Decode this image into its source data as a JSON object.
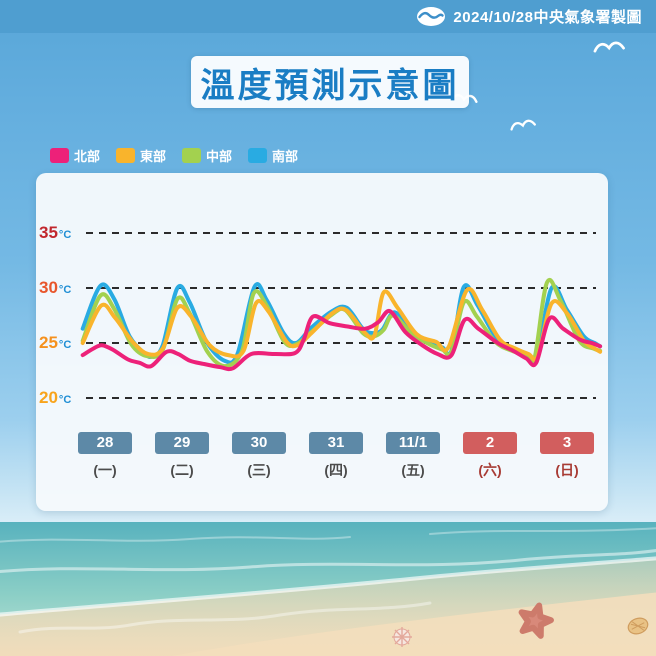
{
  "header": {
    "attribution": "2024/10/28中央氣象署製圖",
    "logo_icon": "cwa-wave-logo"
  },
  "title": "溫度預測示意圖",
  "legend": [
    {
      "label": "北部",
      "color": "#ed2179"
    },
    {
      "label": "東部",
      "color": "#f9b42c"
    },
    {
      "label": "中部",
      "color": "#a3d14f"
    },
    {
      "label": "南部",
      "color": "#29abe2"
    }
  ],
  "chart_data": {
    "type": "line",
    "title": "溫度預測示意圖",
    "grid": "horizontal-dashed",
    "legend_position": "top-left-outside",
    "x_axis": {
      "note": "x in day units 0-7, one unit per date, tick centers at k+0.5",
      "days": [
        {
          "date": "28",
          "weekday": "(一)",
          "weekend": false
        },
        {
          "date": "29",
          "weekday": "(二)",
          "weekend": false
        },
        {
          "date": "30",
          "weekday": "(三)",
          "weekend": false
        },
        {
          "date": "31",
          "weekday": "(四)",
          "weekend": false
        },
        {
          "date": "11/1",
          "weekday": "(五)",
          "weekend": false
        },
        {
          "date": "2",
          "weekday": "(六)",
          "weekend": true
        },
        {
          "date": "3",
          "weekday": "(日)",
          "weekend": true
        }
      ],
      "badge_colors": {
        "weekday": "#5d89a7",
        "weekend": "#d25e5e"
      },
      "weekday_text_colors": {
        "weekday": "#4c4c4c",
        "weekend": "#a83b34"
      }
    },
    "y_axis": {
      "unit": "°C",
      "unit_color": "#1f8ed4",
      "range": [
        20,
        35
      ],
      "ticks": [
        {
          "value": 35,
          "label": "35",
          "color": "#c1272d"
        },
        {
          "value": 30,
          "label": "30",
          "color": "#e8562c"
        },
        {
          "value": 25,
          "label": "25",
          "color": "#f5911e"
        },
        {
          "value": 20,
          "label": "20",
          "color": "#f8a41c"
        }
      ]
    },
    "series": [
      {
        "name": "南部",
        "color": "#29abe2",
        "points": [
          [
            0.21,
            26.3
          ],
          [
            0.44,
            30.2
          ],
          [
            0.62,
            29.0
          ],
          [
            0.82,
            25.6
          ],
          [
            1.02,
            24.0
          ],
          [
            1.12,
            23.8
          ],
          [
            1.25,
            24.8
          ],
          [
            1.44,
            30.0
          ],
          [
            1.6,
            28.7
          ],
          [
            1.82,
            25.1
          ],
          [
            2.05,
            23.4
          ],
          [
            2.22,
            24.0
          ],
          [
            2.44,
            30.1
          ],
          [
            2.6,
            28.9
          ],
          [
            2.82,
            25.9
          ],
          [
            2.98,
            25.0
          ],
          [
            3.18,
            26.4
          ],
          [
            3.45,
            27.9
          ],
          [
            3.64,
            28.2
          ],
          [
            3.85,
            26.3
          ],
          [
            3.98,
            25.9
          ],
          [
            4.1,
            26.2
          ],
          [
            4.26,
            27.8
          ],
          [
            4.48,
            26.0
          ],
          [
            4.68,
            25.2
          ],
          [
            4.88,
            24.6
          ],
          [
            5.0,
            24.3
          ],
          [
            5.16,
            30.1
          ],
          [
            5.34,
            28.4
          ],
          [
            5.58,
            25.5
          ],
          [
            5.78,
            24.6
          ],
          [
            5.97,
            23.9
          ],
          [
            6.1,
            23.5
          ],
          [
            6.3,
            30.0
          ],
          [
            6.5,
            28.0
          ],
          [
            6.72,
            25.6
          ],
          [
            6.86,
            25.0
          ],
          [
            6.93,
            24.7
          ]
        ]
      },
      {
        "name": "中部",
        "color": "#a3d14f",
        "points": [
          [
            0.21,
            25.2
          ],
          [
            0.44,
            29.3
          ],
          [
            0.62,
            28.1
          ],
          [
            0.84,
            24.9
          ],
          [
            1.05,
            23.8
          ],
          [
            1.25,
            24.4
          ],
          [
            1.44,
            29.0
          ],
          [
            1.6,
            27.7
          ],
          [
            1.83,
            24.2
          ],
          [
            2.06,
            22.9
          ],
          [
            2.28,
            24.3
          ],
          [
            2.43,
            29.5
          ],
          [
            2.6,
            28.4
          ],
          [
            2.83,
            25.1
          ],
          [
            2.99,
            24.9
          ],
          [
            3.18,
            26.0
          ],
          [
            3.45,
            27.6
          ],
          [
            3.62,
            28.0
          ],
          [
            3.85,
            25.9
          ],
          [
            3.99,
            25.6
          ],
          [
            4.12,
            26.2
          ],
          [
            4.24,
            27.5
          ],
          [
            4.48,
            25.9
          ],
          [
            4.68,
            25.0
          ],
          [
            4.88,
            24.4
          ],
          [
            5.0,
            24.2
          ],
          [
            5.16,
            28.7
          ],
          [
            5.33,
            27.4
          ],
          [
            5.57,
            25.1
          ],
          [
            5.78,
            24.3
          ],
          [
            5.97,
            23.9
          ],
          [
            6.08,
            23.7
          ],
          [
            6.24,
            30.5
          ],
          [
            6.42,
            28.8
          ],
          [
            6.66,
            25.2
          ],
          [
            6.84,
            24.5
          ],
          [
            6.93,
            24.3
          ]
        ]
      },
      {
        "name": "東部",
        "color": "#f9b42c",
        "points": [
          [
            0.21,
            25.0
          ],
          [
            0.45,
            28.4
          ],
          [
            0.63,
            27.3
          ],
          [
            0.86,
            25.1
          ],
          [
            1.06,
            24.0
          ],
          [
            1.25,
            24.5
          ],
          [
            1.44,
            28.2
          ],
          [
            1.62,
            27.4
          ],
          [
            1.86,
            24.8
          ],
          [
            2.1,
            23.9
          ],
          [
            2.3,
            24.3
          ],
          [
            2.46,
            28.6
          ],
          [
            2.62,
            27.9
          ],
          [
            2.86,
            25.1
          ],
          [
            3.0,
            24.8
          ],
          [
            3.18,
            25.9
          ],
          [
            3.45,
            27.7
          ],
          [
            3.63,
            28.0
          ],
          [
            3.88,
            25.9
          ],
          [
            4.0,
            25.7
          ],
          [
            4.12,
            29.6
          ],
          [
            4.3,
            28.2
          ],
          [
            4.55,
            25.8
          ],
          [
            4.8,
            25.1
          ],
          [
            4.96,
            24.6
          ],
          [
            5.2,
            29.8
          ],
          [
            5.4,
            28.0
          ],
          [
            5.63,
            25.3
          ],
          [
            5.83,
            24.5
          ],
          [
            6.0,
            24.0
          ],
          [
            6.12,
            23.8
          ],
          [
            6.3,
            28.6
          ],
          [
            6.5,
            27.7
          ],
          [
            6.72,
            25.2
          ],
          [
            6.86,
            24.5
          ],
          [
            6.93,
            24.2
          ]
        ]
      },
      {
        "name": "北部",
        "color": "#ed2179",
        "points": [
          [
            0.21,
            23.9
          ],
          [
            0.35,
            24.5
          ],
          [
            0.46,
            24.8
          ],
          [
            0.6,
            24.4
          ],
          [
            0.8,
            23.5
          ],
          [
            0.95,
            23.2
          ],
          [
            1.1,
            22.9
          ],
          [
            1.3,
            24.2
          ],
          [
            1.45,
            24.0
          ],
          [
            1.6,
            23.4
          ],
          [
            1.78,
            23.1
          ],
          [
            2.0,
            22.8
          ],
          [
            2.16,
            22.7
          ],
          [
            2.4,
            24.0
          ],
          [
            2.7,
            24.0
          ],
          [
            2.97,
            24.1
          ],
          [
            3.08,
            25.3
          ],
          [
            3.2,
            27.4
          ],
          [
            3.42,
            26.8
          ],
          [
            3.65,
            26.5
          ],
          [
            3.88,
            26.3
          ],
          [
            4.05,
            26.9
          ],
          [
            4.2,
            27.9
          ],
          [
            4.4,
            26.0
          ],
          [
            4.62,
            24.8
          ],
          [
            4.82,
            24.0
          ],
          [
            5.0,
            23.9
          ],
          [
            5.17,
            27.1
          ],
          [
            5.35,
            26.3
          ],
          [
            5.6,
            25.0
          ],
          [
            5.8,
            24.3
          ],
          [
            5.97,
            23.6
          ],
          [
            6.1,
            23.2
          ],
          [
            6.27,
            27.2
          ],
          [
            6.45,
            26.3
          ],
          [
            6.67,
            25.3
          ],
          [
            6.82,
            25.0
          ],
          [
            6.93,
            24.7
          ]
        ]
      }
    ]
  },
  "scene": {
    "decorations": [
      "seagull-icon",
      "starfish-icon",
      "sea-urchin-icon",
      "scallop-shell-icon"
    ]
  }
}
